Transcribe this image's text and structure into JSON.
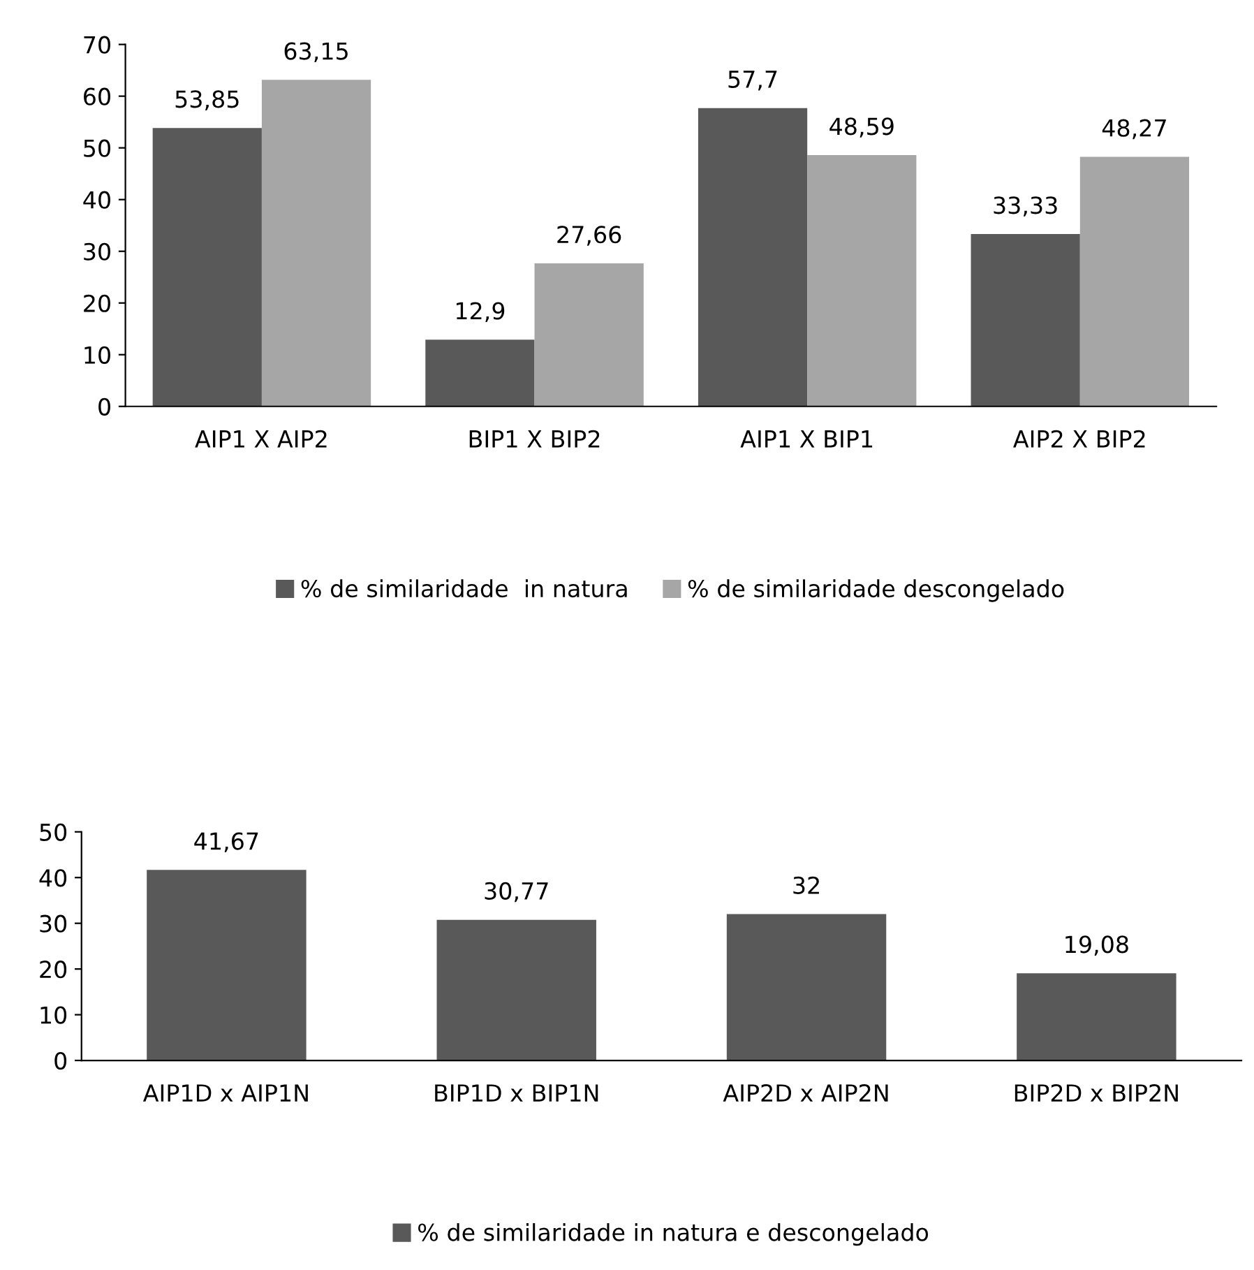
{
  "chart_data": [
    {
      "type": "bar",
      "categories": [
        "AIP1 X AIP2",
        "BIP1 X BIP2",
        "AIP1 X BIP1",
        "AIP2 X BIP2"
      ],
      "series": [
        {
          "name": "% de similaridade  in natura",
          "color": "#595959",
          "values": [
            53.85,
            12.9,
            57.7,
            33.33
          ],
          "value_labels": [
            "53,85",
            "12,9",
            "57,7",
            "33,33"
          ]
        },
        {
          "name": "% de similaridade descongelado",
          "color": "#a6a6a6",
          "values": [
            63.15,
            27.66,
            48.59,
            48.27
          ],
          "value_labels": [
            "63,15",
            "27,66",
            "48,59",
            "48,27"
          ]
        }
      ],
      "ylim": [
        0,
        70
      ],
      "yticks": [
        0,
        10,
        20,
        30,
        40,
        50,
        60,
        70
      ],
      "grid": false,
      "legend": "bottom"
    },
    {
      "type": "bar",
      "categories": [
        "AIP1D x AIP1N",
        "BIP1D x BIP1N",
        "AIP2D x AIP2N",
        "BIP2D x BIP2N"
      ],
      "series": [
        {
          "name": "% de similaridade in natura e descongelado",
          "color": "#595959",
          "values": [
            41.67,
            30.77,
            32,
            19.08
          ],
          "value_labels": [
            "41,67",
            "30,77",
            "32",
            "19,08"
          ]
        }
      ],
      "ylim": [
        0,
        50
      ],
      "yticks": [
        0,
        10,
        20,
        30,
        40,
        50
      ],
      "grid": false,
      "legend": "bottom"
    }
  ]
}
